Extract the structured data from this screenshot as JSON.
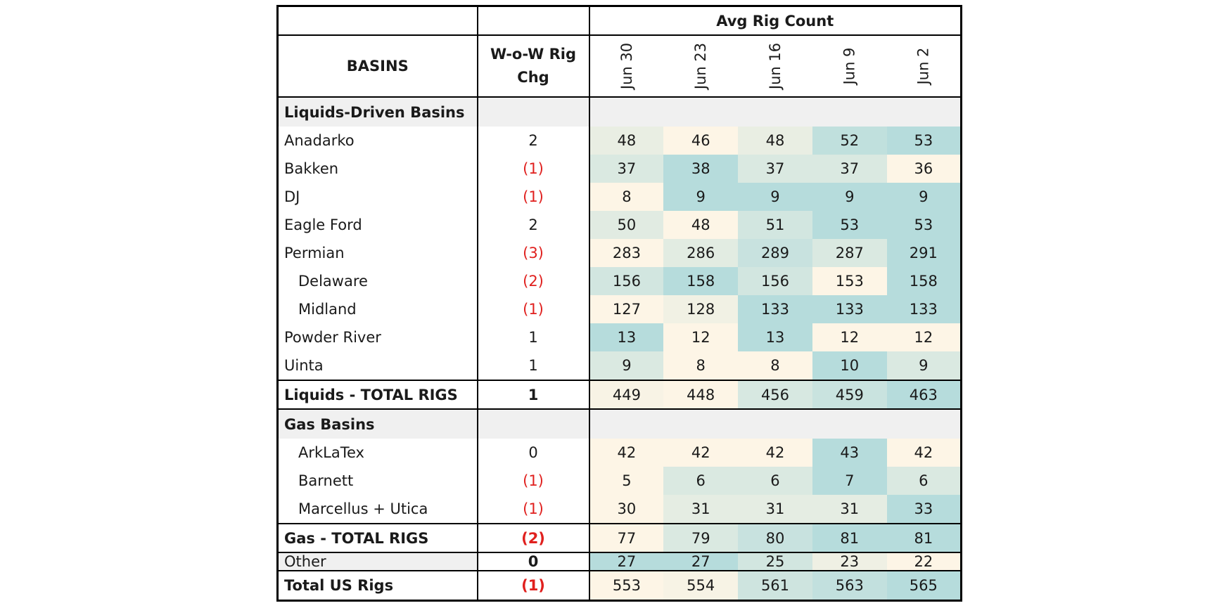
{
  "chart_data": {
    "type": "table",
    "header": {
      "group_label": "Avg Rig Count",
      "basins_label": "BASINS",
      "chg_label": "W-o-W Rig Chg",
      "weeks": [
        "Jun 30",
        "Jun 23",
        "Jun 16",
        "Jun 9",
        "Jun 2"
      ]
    },
    "rows": [
      {
        "kind": "section",
        "label": "Liquids-Driven Basins"
      },
      {
        "kind": "data",
        "label": "Anadarko",
        "indent": false,
        "chg": "2",
        "neg": false,
        "values": [
          48,
          46,
          48,
          52,
          53
        ]
      },
      {
        "kind": "data",
        "label": "Bakken",
        "indent": false,
        "chg": "(1)",
        "neg": true,
        "values": [
          37,
          38,
          37,
          37,
          36
        ]
      },
      {
        "kind": "data",
        "label": "DJ",
        "indent": false,
        "chg": "(1)",
        "neg": true,
        "values": [
          8,
          9,
          9,
          9,
          9
        ]
      },
      {
        "kind": "data",
        "label": "Eagle Ford",
        "indent": false,
        "chg": "2",
        "neg": false,
        "values": [
          50,
          48,
          51,
          53,
          53
        ]
      },
      {
        "kind": "data",
        "label": "Permian",
        "indent": false,
        "chg": "(3)",
        "neg": true,
        "values": [
          283,
          286,
          289,
          287,
          291
        ]
      },
      {
        "kind": "data",
        "label": "Delaware",
        "indent": true,
        "chg": "(2)",
        "neg": true,
        "values": [
          156,
          158,
          156,
          153,
          158
        ]
      },
      {
        "kind": "data",
        "label": "Midland",
        "indent": true,
        "chg": "(1)",
        "neg": true,
        "values": [
          127,
          128,
          133,
          133,
          133
        ]
      },
      {
        "kind": "data",
        "label": "Powder River",
        "indent": false,
        "chg": "1",
        "neg": false,
        "values": [
          13,
          12,
          13,
          12,
          12
        ]
      },
      {
        "kind": "data",
        "label": "Uinta",
        "indent": false,
        "chg": "1",
        "neg": false,
        "values": [
          9,
          8,
          8,
          10,
          9
        ]
      },
      {
        "kind": "total",
        "label": "Liquids - TOTAL RIGS",
        "chg": "1",
        "neg": false,
        "values": [
          449,
          448,
          456,
          459,
          463
        ]
      },
      {
        "kind": "section",
        "label": "Gas Basins"
      },
      {
        "kind": "data",
        "label": "ArkLaTex",
        "indent": true,
        "chg": "0",
        "neg": false,
        "values": [
          42,
          42,
          42,
          43,
          42
        ]
      },
      {
        "kind": "data",
        "label": "Barnett",
        "indent": true,
        "chg": "(1)",
        "neg": true,
        "values": [
          5,
          6,
          6,
          7,
          6
        ]
      },
      {
        "kind": "data",
        "label": "Marcellus + Utica",
        "indent": true,
        "chg": "(1)",
        "neg": true,
        "values": [
          30,
          31,
          31,
          31,
          33
        ]
      },
      {
        "kind": "total",
        "label": "Gas - TOTAL RIGS",
        "chg": "(2)",
        "neg": true,
        "values": [
          77,
          79,
          80,
          81,
          81
        ]
      },
      {
        "kind": "other",
        "label": "Other",
        "chg": "0",
        "neg": false,
        "values": [
          27,
          27,
          25,
          23,
          22
        ]
      },
      {
        "kind": "grand",
        "label": "Total US Rigs",
        "chg": "(1)",
        "neg": true,
        "values": [
          553,
          554,
          561,
          563,
          565
        ]
      }
    ],
    "color_scale": {
      "low": "#fdf5e6",
      "high": "#b6dcdc",
      "negative_text": "#e0201e"
    }
  }
}
